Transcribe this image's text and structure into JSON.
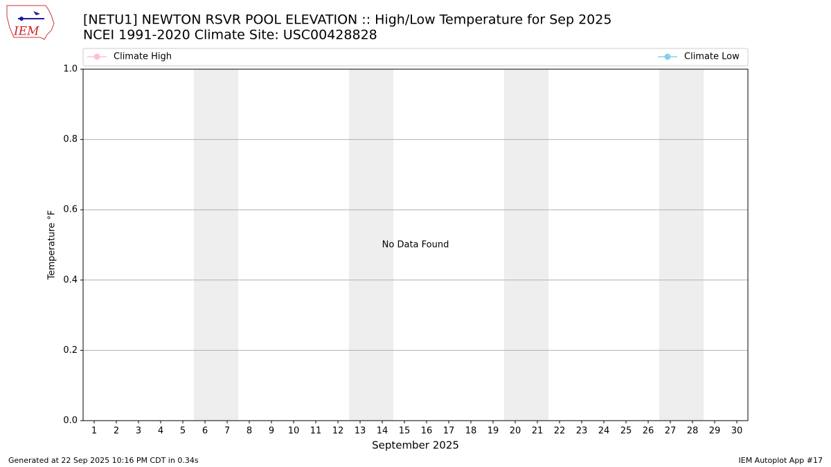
{
  "logo_text": "IEM",
  "footer_left": "Generated at 22 Sep 2025 10:16 PM CDT in 0.34s",
  "footer_right": "IEM Autoplot App #17",
  "chart_data": {
    "type": "line",
    "title": "[NETU1] NEWTON RSVR POOL ELEVATION :: High/Low Temperature for Sep 2025",
    "subtitle": "NCEI 1991-2020 Climate Site: USC00428828",
    "xlabel": "September 2025",
    "ylabel": "Temperature °F",
    "annotation": "No Data Found",
    "x": [
      1,
      2,
      3,
      4,
      5,
      6,
      7,
      8,
      9,
      10,
      11,
      12,
      13,
      14,
      15,
      16,
      17,
      18,
      19,
      20,
      21,
      22,
      23,
      24,
      25,
      26,
      27,
      28,
      29,
      30
    ],
    "series": [
      {
        "name": "Climate High",
        "color": "#ffc0cb",
        "values": [
          null,
          null,
          null,
          null,
          null,
          null,
          null,
          null,
          null,
          null,
          null,
          null,
          null,
          null,
          null,
          null,
          null,
          null,
          null,
          null,
          null,
          null,
          null,
          null,
          null,
          null,
          null,
          null,
          null,
          null
        ]
      },
      {
        "name": "Climate Low",
        "color": "#87ceeb",
        "values": [
          null,
          null,
          null,
          null,
          null,
          null,
          null,
          null,
          null,
          null,
          null,
          null,
          null,
          null,
          null,
          null,
          null,
          null,
          null,
          null,
          null,
          null,
          null,
          null,
          null,
          null,
          null,
          null,
          null,
          null
        ]
      }
    ],
    "shaded_days": [
      6,
      7,
      13,
      14,
      20,
      21,
      27,
      28
    ],
    "shade_color": "#eeeeee",
    "xlim": [
      0.5,
      30.5
    ],
    "xticks": [
      1,
      2,
      3,
      4,
      5,
      6,
      7,
      8,
      9,
      10,
      11,
      12,
      13,
      14,
      15,
      16,
      17,
      18,
      19,
      20,
      21,
      22,
      23,
      24,
      25,
      26,
      27,
      28,
      29,
      30
    ],
    "ylim": [
      0,
      1
    ],
    "yticks": [
      {
        "value": 0,
        "label": "0.0"
      },
      0.2,
      0.4,
      0.6,
      0.8,
      {
        "value": 1,
        "label": "1.0"
      }
    ],
    "grid": true,
    "legend": "top"
  }
}
